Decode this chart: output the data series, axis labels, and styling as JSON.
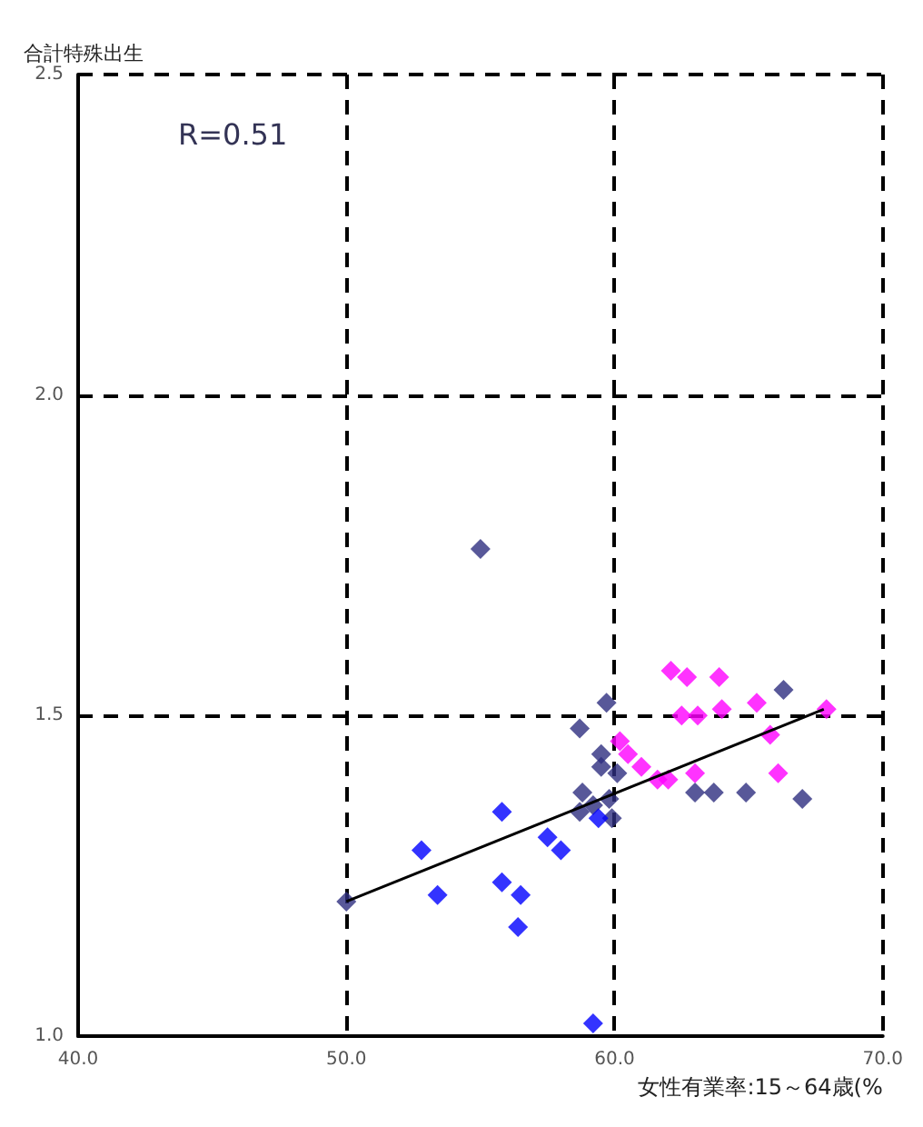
{
  "chart_data": {
    "type": "scatter",
    "xlabel": "女性有業率:15～64歳(%",
    "ylabel": "合計特殊出生",
    "annotations": [
      "R=0.51"
    ],
    "xlim": [
      40,
      70
    ],
    "ylim": [
      1,
      2.5
    ],
    "xticks": [
      {
        "value": 40,
        "label": "40.0"
      },
      {
        "value": 50,
        "label": "50.0"
      },
      {
        "value": 60,
        "label": "60.0"
      },
      {
        "value": 70,
        "label": "70.0"
      }
    ],
    "yticks": [
      {
        "value": 1,
        "label": "1.0"
      },
      {
        "value": 1.5,
        "label": "1.5"
      },
      {
        "value": 2,
        "label": "2.0"
      },
      {
        "value": 2.5,
        "label": "2.5"
      }
    ],
    "grid": true,
    "marker": "diamond",
    "series": [
      {
        "color": "#2e2e80",
        "x": [
          55.0,
          50.0,
          59.7,
          58.7,
          59.5,
          59.5,
          60.1,
          58.8,
          59.8,
          58.7,
          59.2,
          59.9,
          63.0,
          63.7,
          64.9,
          67.0,
          66.3
        ],
        "values": [
          1.76,
          1.21,
          1.52,
          1.48,
          1.44,
          1.42,
          1.41,
          1.38,
          1.37,
          1.35,
          1.36,
          1.34,
          1.38,
          1.38,
          1.38,
          1.37,
          1.54
        ]
      },
      {
        "color": "#ff00ff",
        "x": [
          62.1,
          62.7,
          63.9,
          62.5,
          63.1,
          64.0,
          65.3,
          65.8,
          67.9,
          60.2,
          60.5,
          61.0,
          61.6,
          62.0,
          63.0,
          66.1
        ],
        "values": [
          1.57,
          1.56,
          1.56,
          1.5,
          1.5,
          1.51,
          1.52,
          1.47,
          1.51,
          1.46,
          1.44,
          1.42,
          1.4,
          1.4,
          1.41,
          1.41
        ]
      },
      {
        "color": "#0000ff",
        "x": [
          55.8,
          52.8,
          57.5,
          58.0,
          59.4,
          53.4,
          55.8,
          56.5,
          56.4,
          59.2
        ],
        "values": [
          1.35,
          1.29,
          1.31,
          1.29,
          1.34,
          1.22,
          1.24,
          1.22,
          1.17,
          1.02
        ]
      },
      {
        "type": "line",
        "color": "#000000",
        "marker": "none",
        "x": [
          50,
          67.8
        ],
        "values": [
          1.21,
          1.51
        ]
      }
    ]
  }
}
